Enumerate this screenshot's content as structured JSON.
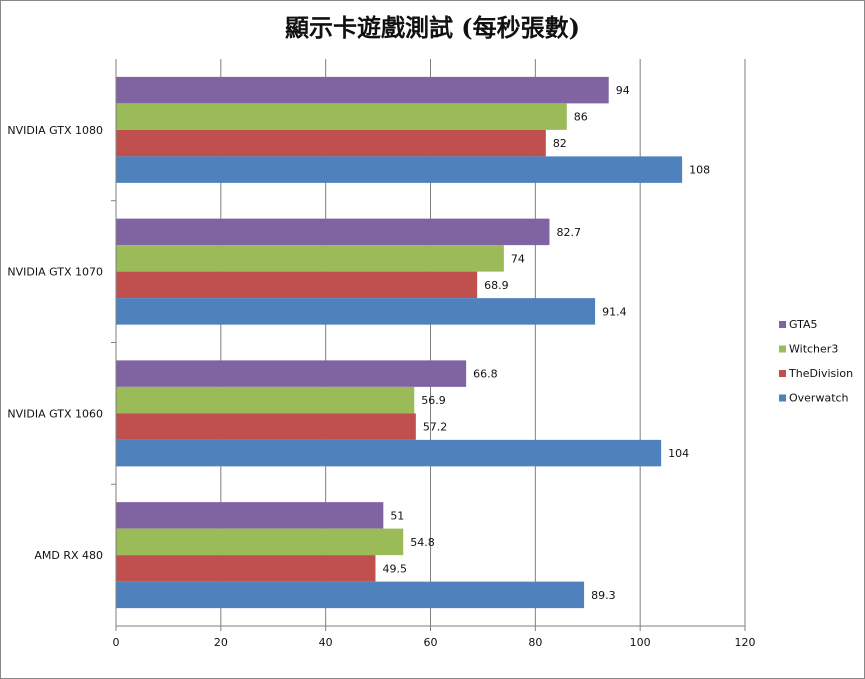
{
  "chart_data": {
    "type": "bar",
    "orientation": "horizontal",
    "title": "顯示卡遊戲測試 (每秒張數)",
    "categories": [
      "NVIDIA GTX 1080",
      "NVIDIA GTX 1070",
      "NVIDIA GTX 1060",
      "AMD RX 480"
    ],
    "series": [
      {
        "name": "GTA5",
        "color": "#8064a2",
        "values": [
          94,
          82.7,
          66.8,
          51
        ]
      },
      {
        "name": "Witcher3",
        "color": "#9bbb59",
        "values": [
          86,
          74,
          56.9,
          54.8
        ]
      },
      {
        "name": "TheDivision",
        "color": "#c0504d",
        "values": [
          82,
          68.9,
          57.2,
          49.5
        ]
      },
      {
        "name": "Overwatch",
        "color": "#4f81bd",
        "values": [
          108,
          91.4,
          104,
          89.3
        ]
      }
    ],
    "x_ticks": [
      "0",
      "20",
      "40",
      "60",
      "80",
      "100",
      "120"
    ],
    "xlim": [
      0,
      120
    ],
    "grid": true,
    "legend_position": "right",
    "data_labels": true
  }
}
